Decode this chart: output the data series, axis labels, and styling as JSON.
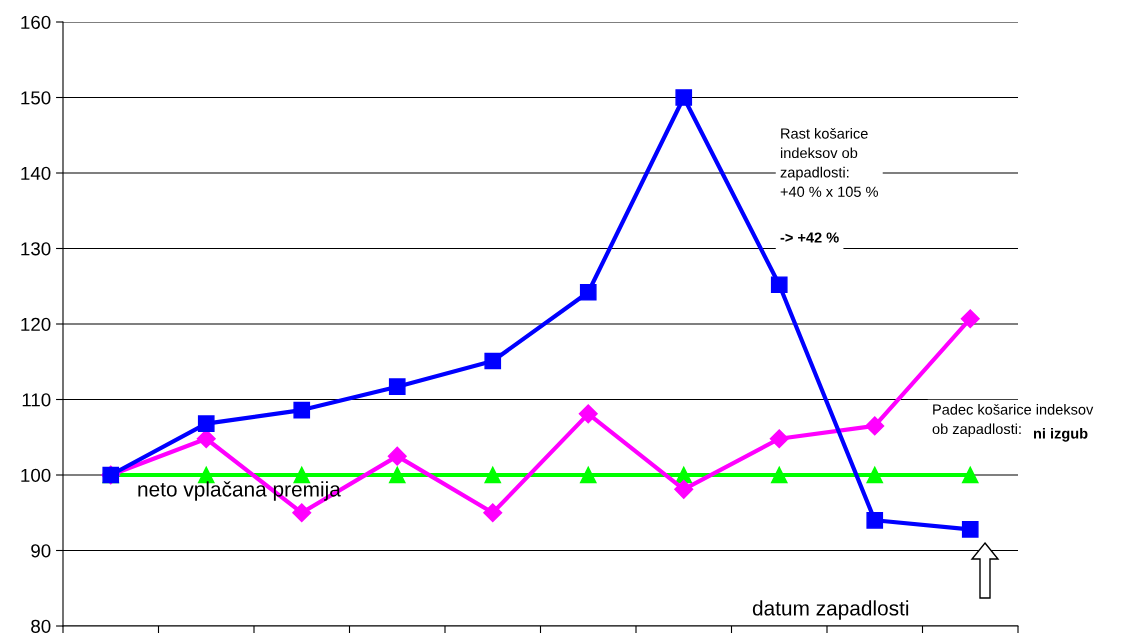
{
  "chart_data": {
    "type": "line",
    "categories": [
      null,
      null,
      null,
      null,
      null,
      null,
      null,
      null,
      null,
      null
    ],
    "series": [
      {
        "color": "#00ff00",
        "marker": "triangle",
        "values": [
          100,
          100,
          100,
          100,
          100,
          100,
          100,
          100,
          100,
          100
        ]
      },
      {
        "color": "#ff00ff",
        "marker": "diamond",
        "values": [
          100,
          104.8,
          95.0,
          102.5,
          95.0,
          108.1,
          98.1,
          104.8,
          106.5,
          120.7
        ]
      },
      {
        "color": "#0000ff",
        "marker": "square",
        "values": [
          100,
          106.8,
          108.6,
          111.7,
          115.1,
          124.2,
          150,
          125.2,
          94.0,
          92.8
        ]
      }
    ],
    "ylim": [
      80,
      160
    ],
    "yticks": [
      80,
      90,
      100,
      110,
      120,
      130,
      140,
      150,
      160
    ],
    "grid": "y",
    "line_style": "solid",
    "annotations": [
      "Rast košarice\nindeksov ob\nzapadlosti:\n+40 % x 105 %",
      "-> +42 %",
      "Padec košarice indeksov\nob zapadlosti:",
      "ni izgub",
      "neto vplačana premija",
      "datum zapadlosti"
    ]
  }
}
